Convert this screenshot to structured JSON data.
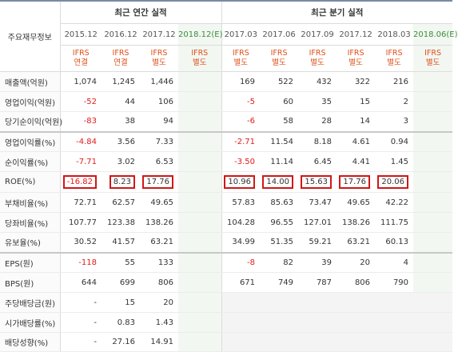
{
  "header": {
    "corner": "주요재무정보",
    "groups": [
      "최근 연간 실적",
      "최근 분기 실적"
    ],
    "periods": [
      "2015.12",
      "2016.12",
      "2017.12",
      "2018.12(E)",
      "2017.03",
      "2017.06",
      "2017.09",
      "2017.12",
      "2018.03",
      "2018.06(E)"
    ],
    "accounting": [
      {
        "line1": "IFRS",
        "line2": "연결"
      },
      {
        "line1": "IFRS",
        "line2": "연결"
      },
      {
        "line1": "IFRS",
        "line2": "별도"
      },
      {
        "line1": "IFRS",
        "line2": "별도"
      },
      {
        "line1": "IFRS",
        "line2": "별도"
      },
      {
        "line1": "IFRS",
        "line2": "별도"
      },
      {
        "line1": "IFRS",
        "line2": "별도"
      },
      {
        "line1": "IFRS",
        "line2": "별도"
      },
      {
        "line1": "IFRS",
        "line2": "별도"
      },
      {
        "line1": "IFRS",
        "line2": "별도"
      }
    ]
  },
  "rows": [
    {
      "label": "매출액(억원)",
      "values": [
        "1,074",
        "1,245",
        "1,446",
        "",
        "169",
        "522",
        "432",
        "322",
        "216",
        ""
      ]
    },
    {
      "label": "영업이익(억원)",
      "values": [
        "-52",
        "44",
        "106",
        "",
        "-5",
        "60",
        "35",
        "15",
        "2",
        ""
      ]
    },
    {
      "label": "당기순이익(억원)",
      "values": [
        "-83",
        "38",
        "94",
        "",
        "-6",
        "58",
        "28",
        "14",
        "3",
        ""
      ]
    },
    {
      "label": "영업이익률(%)",
      "values": [
        "-4.84",
        "3.56",
        "7.33",
        "",
        "-2.71",
        "11.54",
        "8.18",
        "4.61",
        "0.94",
        ""
      ]
    },
    {
      "label": "순이익률(%)",
      "values": [
        "-7.71",
        "3.02",
        "6.53",
        "",
        "-3.50",
        "11.14",
        "6.45",
        "4.41",
        "1.45",
        ""
      ]
    },
    {
      "label": "ROE(%)",
      "values": [
        "-16.82",
        "8.23",
        "17.76",
        "",
        "10.96",
        "14.00",
        "15.63",
        "17.76",
        "20.06",
        ""
      ],
      "highlight": [
        true,
        true,
        true,
        false,
        true,
        true,
        true,
        true,
        true,
        false
      ]
    },
    {
      "label": "부채비율(%)",
      "values": [
        "72.71",
        "62.57",
        "49.65",
        "",
        "57.83",
        "85.63",
        "73.47",
        "49.65",
        "42.22",
        ""
      ]
    },
    {
      "label": "당좌비율(%)",
      "values": [
        "107.77",
        "123.38",
        "138.26",
        "",
        "104.28",
        "96.55",
        "127.01",
        "138.26",
        "111.75",
        ""
      ]
    },
    {
      "label": "유보율(%)",
      "values": [
        "30.52",
        "41.57",
        "63.21",
        "",
        "34.99",
        "51.35",
        "59.21",
        "63.21",
        "60.13",
        ""
      ]
    },
    {
      "label": "EPS(원)",
      "values": [
        "-118",
        "55",
        "133",
        "",
        "-8",
        "82",
        "39",
        "20",
        "4",
        ""
      ]
    },
    {
      "label": "BPS(원)",
      "values": [
        "644",
        "699",
        "806",
        "",
        "671",
        "749",
        "787",
        "806",
        "790",
        ""
      ]
    },
    {
      "label": "주당배당금(원)",
      "values": [
        "-",
        "15",
        "20",
        "",
        "",
        "",
        "",
        "",
        "",
        ""
      ],
      "quarterEmpty": true
    },
    {
      "label": "시가배당률(%)",
      "values": [
        "-",
        "0.83",
        "1.43",
        "",
        "",
        "",
        "",
        "",
        "",
        ""
      ],
      "quarterEmpty": true
    },
    {
      "label": "배당성향(%)",
      "values": [
        "-",
        "27.16",
        "14.91",
        "",
        "",
        "",
        "",
        "",
        "",
        ""
      ],
      "quarterEmpty": true
    }
  ],
  "colors": {
    "negative": "#e01b1b",
    "accounting": "#e0501a",
    "estimate": "#3a8e3a",
    "highlight_border": "#d01818"
  }
}
